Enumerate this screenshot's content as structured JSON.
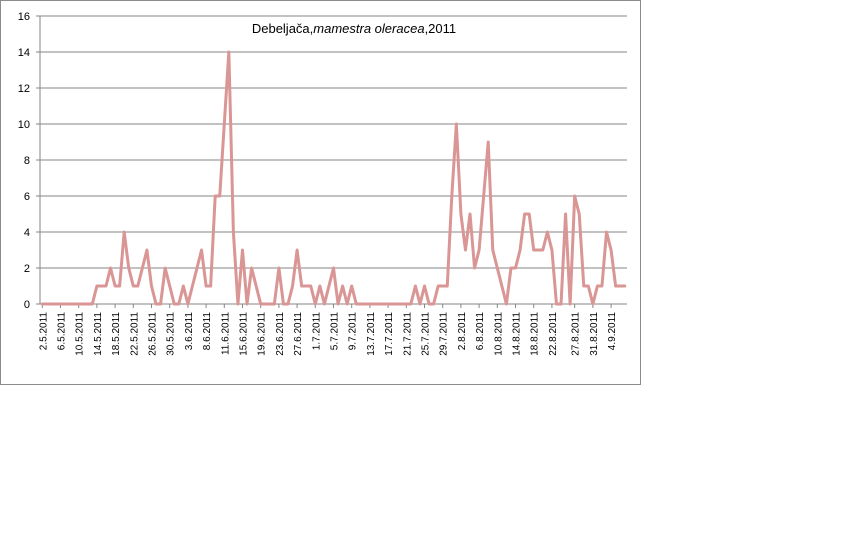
{
  "chart_data": {
    "type": "line",
    "title": {
      "prefix": "Debeljača,",
      "italic": "mamestra oleracea",
      "suffix": ",2011"
    },
    "xlabel": "",
    "ylabel": "",
    "ylim": [
      0,
      16
    ],
    "yticks": [
      0,
      2,
      4,
      6,
      8,
      10,
      12,
      14,
      16
    ],
    "grid": true,
    "x_start_date": "2.5.2011",
    "xtick_labels": [
      "2.5.2011",
      "6.5.2011",
      "10.5.2011",
      "14.5.2011",
      "18.5.2011",
      "22.5.2011",
      "26.5.2011",
      "30.5.2011",
      "3.6.2011",
      "8.6.2011",
      "11.6.2011",
      "15.6.2011",
      "19.6.2011",
      "23.6.2011",
      "27.6.2011",
      "1.7.2011",
      "5.7.2011",
      "9.7.2011",
      "13.7.2011",
      "17.7.2011",
      "21.7.2011",
      "25.7.2011",
      "29.7.2011",
      "2.8.2011",
      "6.8.2011",
      "10.8.2011",
      "14.8.2011",
      "18.8.2011",
      "22.8.2011",
      "27.8.2011",
      "31.8.2011",
      "4.9.2011"
    ],
    "series": [
      {
        "color": "#d99694",
        "values": [
          0,
          0,
          0,
          0,
          0,
          0,
          0,
          0,
          0,
          0,
          0,
          0,
          1,
          1,
          1,
          2,
          1,
          1,
          4,
          2,
          1,
          1,
          2,
          3,
          1,
          0,
          0,
          2,
          1,
          0,
          0,
          1,
          0,
          1,
          2,
          3,
          1,
          1,
          6,
          6,
          10,
          14,
          4,
          0,
          3,
          0,
          2,
          1,
          0,
          0,
          0,
          0,
          2,
          0,
          0,
          1,
          3,
          1,
          1,
          1,
          0,
          1,
          0,
          1,
          2,
          0,
          1,
          0,
          1,
          0,
          0,
          0,
          0,
          0,
          0,
          0,
          0,
          0,
          0,
          0,
          0,
          0,
          1,
          0,
          1,
          0,
          0,
          1,
          1,
          1,
          6,
          10,
          5,
          3,
          5,
          2,
          3,
          6,
          9,
          3,
          2,
          1,
          0,
          2,
          2,
          3,
          5,
          5,
          3,
          3,
          3,
          4,
          3,
          0,
          0,
          5,
          0,
          6,
          5,
          1,
          1,
          0,
          1,
          1,
          4,
          3,
          1,
          1,
          1
        ]
      }
    ]
  }
}
